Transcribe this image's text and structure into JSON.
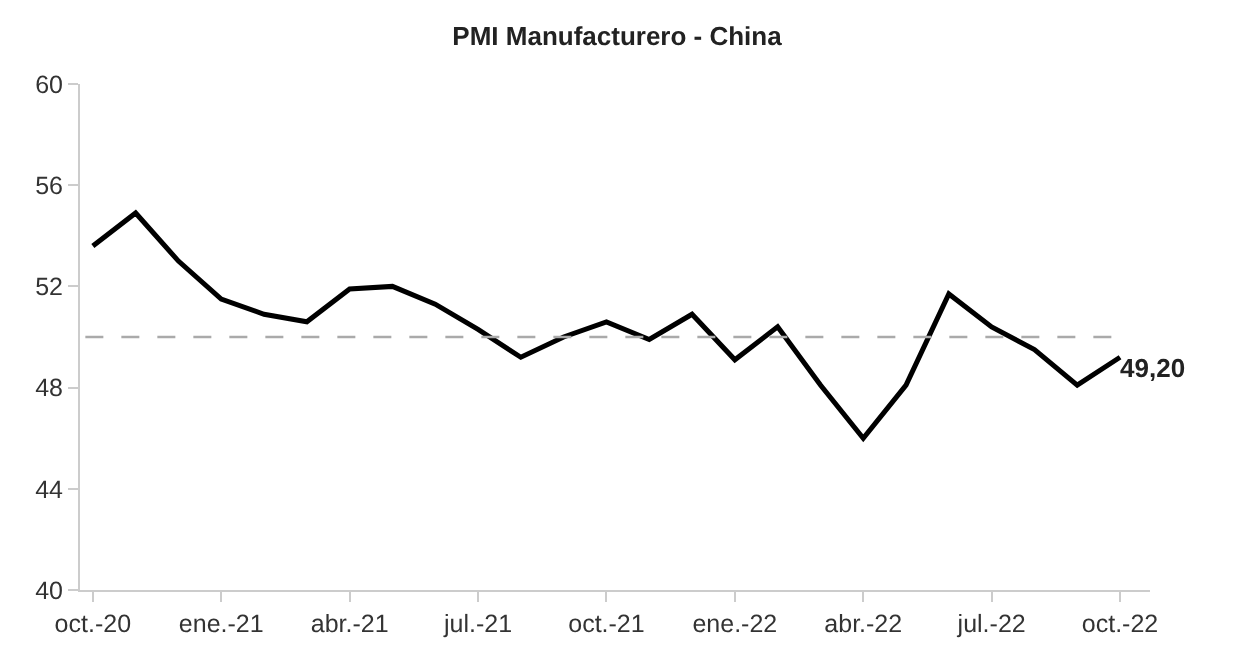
{
  "chart_data": {
    "type": "line",
    "title": "PMI Manufacturero - China",
    "categories": [
      "oct.-20",
      null,
      null,
      "ene.-21",
      null,
      null,
      "abr.-21",
      null,
      null,
      "jul.-21",
      null,
      null,
      "oct.-21",
      null,
      null,
      "ene.-22",
      null,
      null,
      "abr.-22",
      null,
      null,
      "jul.-22",
      null,
      null,
      "oct.-22"
    ],
    "series": [
      {
        "color": "#000000",
        "values": [
          53.6,
          54.9,
          53.0,
          51.5,
          50.9,
          50.6,
          51.9,
          52.0,
          51.3,
          50.3,
          49.2,
          50.0,
          50.6,
          49.9,
          50.9,
          49.1,
          50.4,
          48.1,
          46.0,
          48.1,
          51.7,
          50.4,
          49.5,
          48.1,
          49.2
        ],
        "value_labels": [
          null,
          null,
          null,
          null,
          null,
          null,
          null,
          null,
          null,
          null,
          null,
          null,
          null,
          null,
          null,
          null,
          null,
          null,
          null,
          null,
          null,
          null,
          null,
          null,
          "49,20"
        ]
      }
    ],
    "ylim": [
      40,
      60
    ],
    "yticks": [
      40,
      44,
      48,
      52,
      56,
      60
    ],
    "grid": false,
    "marker": "none",
    "line_style": "solid",
    "ref_lines": [
      {
        "axis": "y",
        "value": 50,
        "color": "#aaaaaa",
        "line_style": "dashed"
      }
    ]
  }
}
